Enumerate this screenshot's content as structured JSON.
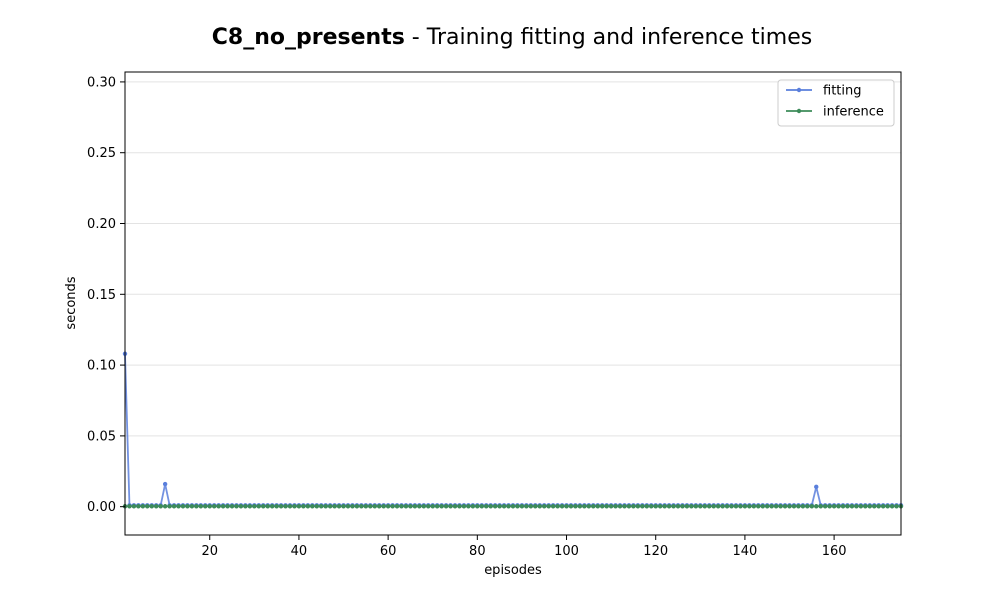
{
  "chart_data": {
    "type": "line",
    "title_bold": "C8_no_presents",
    "title_rest": " - Training fitting and inference times",
    "xlabel": "episodes",
    "ylabel": "seconds",
    "xlim": [
      1,
      175
    ],
    "ylim": [
      -0.02,
      0.307
    ],
    "x_ticks": [
      20,
      40,
      60,
      80,
      100,
      120,
      140,
      160
    ],
    "y_ticks": [
      0.0,
      0.05,
      0.1,
      0.15,
      0.2,
      0.25,
      0.3
    ],
    "y_tick_labels": [
      "0.00",
      "0.05",
      "0.10",
      "0.15",
      "0.20",
      "0.25",
      "0.30"
    ],
    "grid": "horizontal",
    "legend": "top-right",
    "x_start": 1,
    "x_end": 175,
    "series": [
      {
        "name": "fitting",
        "color": "#5a7fdc",
        "baseline": 0.001,
        "spikes": [
          {
            "x": 1,
            "y": 0.108
          },
          {
            "x": 10,
            "y": 0.016
          },
          {
            "x": 156,
            "y": 0.014
          }
        ]
      },
      {
        "name": "inference",
        "color": "#3d8b5a",
        "baseline": 0.0003,
        "spikes": []
      }
    ]
  }
}
